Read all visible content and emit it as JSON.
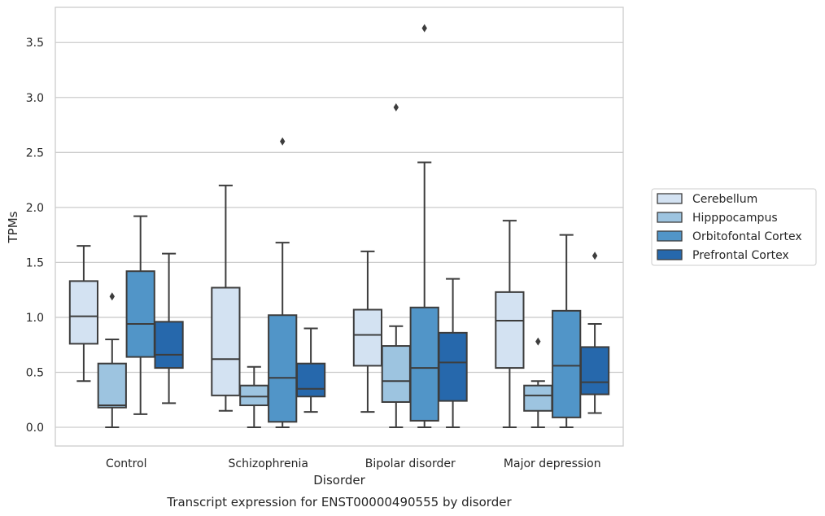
{
  "chart_data": {
    "type": "boxplot",
    "title": "Transcript expression for ENST00000490555 by disorder",
    "xlabel": "Disorder",
    "ylabel": "TPMs",
    "ylim": [
      -0.17,
      3.82
    ],
    "yticks": [
      "0.0",
      "0.5",
      "1.0",
      "1.5",
      "2.0",
      "2.5",
      "3.0",
      "3.5"
    ],
    "categories": [
      "Control",
      "Schizophrenia",
      "Bipolar disorder",
      "Major depression"
    ],
    "grid": true,
    "legend_position": "right",
    "series": [
      {
        "name": "Cerebellum",
        "color": "#d3e2f2",
        "boxes": [
          {
            "whislo": 0.42,
            "q1": 0.76,
            "med": 1.01,
            "q3": 1.33,
            "whishi": 1.65,
            "fliers": []
          },
          {
            "whislo": 0.15,
            "q1": 0.29,
            "med": 0.62,
            "q3": 1.27,
            "whishi": 2.2,
            "fliers": []
          },
          {
            "whislo": 0.14,
            "q1": 0.56,
            "med": 0.84,
            "q3": 1.07,
            "whishi": 1.6,
            "fliers": []
          },
          {
            "whislo": 0.0,
            "q1": 0.54,
            "med": 0.97,
            "q3": 1.23,
            "whishi": 1.88,
            "fliers": []
          }
        ]
      },
      {
        "name": "Hipppocampus",
        "color": "#9dc4e0",
        "boxes": [
          {
            "whislo": 0.0,
            "q1": 0.18,
            "med": 0.2,
            "q3": 0.58,
            "whishi": 0.8,
            "fliers": [
              1.19
            ]
          },
          {
            "whislo": 0.0,
            "q1": 0.2,
            "med": 0.28,
            "q3": 0.38,
            "whishi": 0.55,
            "fliers": []
          },
          {
            "whislo": 0.0,
            "q1": 0.23,
            "med": 0.42,
            "q3": 0.74,
            "whishi": 0.92,
            "fliers": [
              2.91
            ]
          },
          {
            "whislo": 0.0,
            "q1": 0.15,
            "med": 0.29,
            "q3": 0.38,
            "whishi": 0.42,
            "fliers": [
              0.78
            ]
          }
        ]
      },
      {
        "name": "Orbitofontal Cortex",
        "color": "#5195c8",
        "boxes": [
          {
            "whislo": 0.12,
            "q1": 0.64,
            "med": 0.94,
            "q3": 1.42,
            "whishi": 1.92,
            "fliers": []
          },
          {
            "whislo": 0.0,
            "q1": 0.05,
            "med": 0.45,
            "q3": 1.02,
            "whishi": 1.68,
            "fliers": [
              2.6
            ]
          },
          {
            "whislo": 0.0,
            "q1": 0.06,
            "med": 0.54,
            "q3": 1.09,
            "whishi": 2.41,
            "fliers": [
              3.63
            ]
          },
          {
            "whislo": 0.0,
            "q1": 0.09,
            "med": 0.56,
            "q3": 1.06,
            "whishi": 1.75,
            "fliers": []
          }
        ]
      },
      {
        "name": "Prefrontal Cortex",
        "color": "#2668ac",
        "boxes": [
          {
            "whislo": 0.22,
            "q1": 0.54,
            "med": 0.66,
            "q3": 0.96,
            "whishi": 1.58,
            "fliers": []
          },
          {
            "whislo": 0.14,
            "q1": 0.28,
            "med": 0.35,
            "q3": 0.58,
            "whishi": 0.9,
            "fliers": []
          },
          {
            "whislo": 0.0,
            "q1": 0.24,
            "med": 0.59,
            "q3": 0.86,
            "whishi": 1.35,
            "fliers": []
          },
          {
            "whislo": 0.13,
            "q1": 0.3,
            "med": 0.41,
            "q3": 0.73,
            "whishi": 0.94,
            "fliers": [
              1.56
            ]
          }
        ]
      }
    ]
  }
}
